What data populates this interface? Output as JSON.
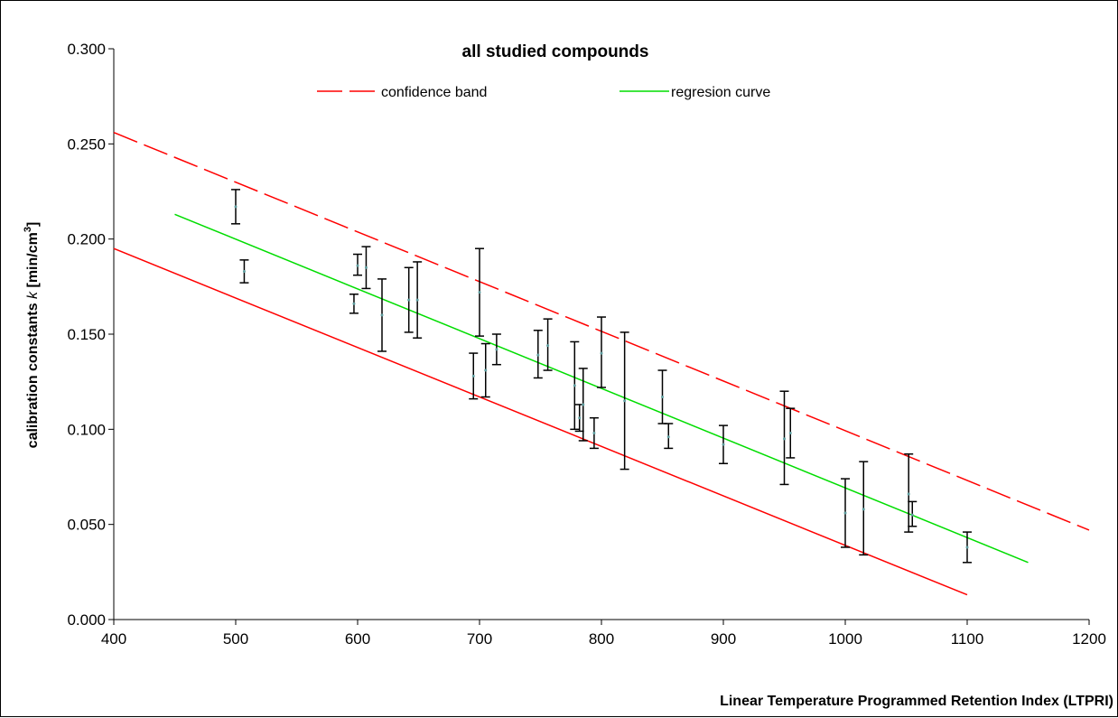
{
  "chart_data": {
    "type": "scatter",
    "title": "all studied compounds",
    "xlabel": "Linear Temperature Programmed Retention Index (LTPRI)",
    "ylabel": {
      "prefix": "calibration constants ",
      "symbol": "k",
      "unit_open": " [min/cm",
      "unit_sup": "3",
      "unit_close": "]"
    },
    "xlim": [
      400,
      1200
    ],
    "ylim": [
      0.0,
      0.3
    ],
    "x_ticks": [
      400,
      500,
      600,
      700,
      800,
      900,
      1000,
      1100,
      1200
    ],
    "x_tick_labels": [
      "400",
      "500",
      "600",
      "700",
      "800",
      "900",
      "1000",
      "1100",
      "1200"
    ],
    "y_ticks": [
      0.0,
      0.05,
      0.1,
      0.15,
      0.2,
      0.25,
      0.3
    ],
    "y_tick_labels": [
      "0.000",
      "0.050",
      "0.100",
      "0.150",
      "0.200",
      "0.250",
      "0.300"
    ],
    "grid": false,
    "legend": {
      "position": "top-center",
      "entries": [
        {
          "label": "confidence band",
          "color": "#ff0000",
          "style": "dashed"
        },
        {
          "label": "regresion curve",
          "color": "#00dd00",
          "style": "solid"
        }
      ]
    },
    "series": [
      {
        "kind": "errorbar",
        "color": "#000000",
        "marker_color": "#5f9ea0",
        "points": [
          {
            "x": 500,
            "y": 0.217,
            "low": 0.208,
            "high": 0.226
          },
          {
            "x": 507,
            "y": 0.183,
            "low": 0.177,
            "high": 0.189
          },
          {
            "x": 597,
            "y": 0.166,
            "low": 0.161,
            "high": 0.171
          },
          {
            "x": 600,
            "y": 0.186,
            "low": 0.181,
            "high": 0.192
          },
          {
            "x": 607,
            "y": 0.185,
            "low": 0.174,
            "high": 0.196
          },
          {
            "x": 620,
            "y": 0.16,
            "low": 0.141,
            "high": 0.179
          },
          {
            "x": 642,
            "y": 0.168,
            "low": 0.151,
            "high": 0.185
          },
          {
            "x": 649,
            "y": 0.168,
            "low": 0.148,
            "high": 0.188
          },
          {
            "x": 695,
            "y": 0.128,
            "low": 0.116,
            "high": 0.14
          },
          {
            "x": 700,
            "y": 0.172,
            "low": 0.149,
            "high": 0.195
          },
          {
            "x": 705,
            "y": 0.131,
            "low": 0.117,
            "high": 0.145
          },
          {
            "x": 714,
            "y": 0.142,
            "low": 0.134,
            "high": 0.15
          },
          {
            "x": 748,
            "y": 0.139,
            "low": 0.127,
            "high": 0.152
          },
          {
            "x": 756,
            "y": 0.144,
            "low": 0.131,
            "high": 0.158
          },
          {
            "x": 778,
            "y": 0.123,
            "low": 0.1,
            "high": 0.146
          },
          {
            "x": 782,
            "y": 0.106,
            "low": 0.099,
            "high": 0.113
          },
          {
            "x": 785,
            "y": 0.113,
            "low": 0.094,
            "high": 0.132
          },
          {
            "x": 794,
            "y": 0.098,
            "low": 0.09,
            "high": 0.106
          },
          {
            "x": 800,
            "y": 0.14,
            "low": 0.122,
            "high": 0.159
          },
          {
            "x": 819,
            "y": 0.115,
            "low": 0.079,
            "high": 0.151
          },
          {
            "x": 850,
            "y": 0.117,
            "low": 0.103,
            "high": 0.131
          },
          {
            "x": 855,
            "y": 0.096,
            "low": 0.09,
            "high": 0.103
          },
          {
            "x": 900,
            "y": 0.092,
            "low": 0.082,
            "high": 0.102
          },
          {
            "x": 950,
            "y": 0.095,
            "low": 0.071,
            "high": 0.12
          },
          {
            "x": 955,
            "y": 0.098,
            "low": 0.085,
            "high": 0.111
          },
          {
            "x": 1000,
            "y": 0.056,
            "low": 0.038,
            "high": 0.074
          },
          {
            "x": 1015,
            "y": 0.058,
            "low": 0.034,
            "high": 0.083
          },
          {
            "x": 1052,
            "y": 0.066,
            "low": 0.046,
            "high": 0.087
          },
          {
            "x": 1055,
            "y": 0.055,
            "low": 0.049,
            "high": 0.062
          },
          {
            "x": 1100,
            "y": 0.038,
            "low": 0.03,
            "high": 0.046
          }
        ]
      },
      {
        "name": "regresion curve",
        "kind": "line",
        "color": "#00dd00",
        "x": [
          450,
          1150
        ],
        "y": [
          0.213,
          0.03
        ]
      },
      {
        "name": "confidence band",
        "kind": "line",
        "style": "dashed",
        "color": "#ff0000",
        "x": [
          400,
          1200
        ],
        "y": [
          0.256,
          0.047
        ]
      },
      {
        "name": "confidence band",
        "kind": "line",
        "style": "solid",
        "color": "#ff0000",
        "x": [
          400,
          1100
        ],
        "y": [
          0.195,
          0.013
        ]
      }
    ]
  }
}
